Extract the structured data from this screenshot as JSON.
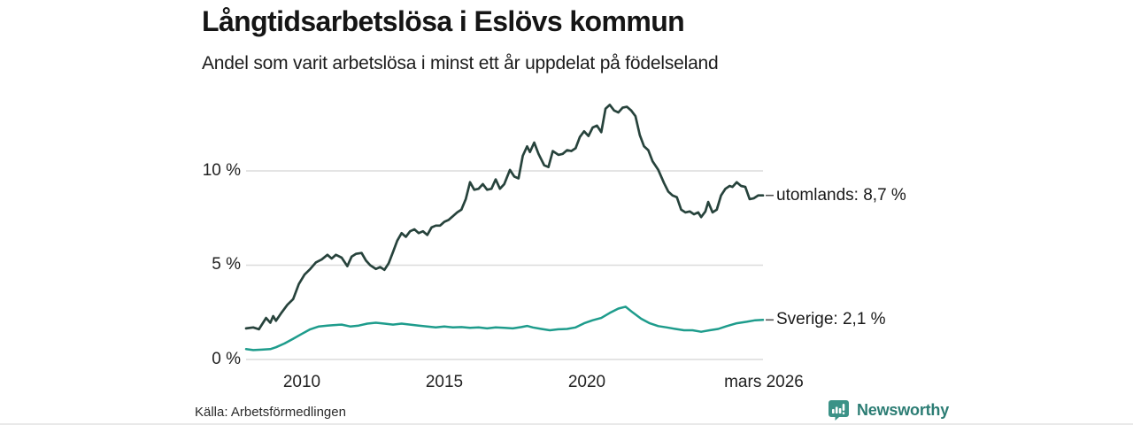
{
  "header": {
    "title": "Långtidsarbetslösa i Eslövs kommun",
    "subtitle": "Andel som varit arbetslösa i minst ett år uppdelat på födelseland"
  },
  "footer": {
    "source": "Källa: Arbetsförmedlingen",
    "brand": "Newsworthy",
    "brand_icon": "newsworthy-bubble-bar-chart-icon"
  },
  "colors": {
    "series_utomlands": "#27433c",
    "series_sverige": "#1e9c8c",
    "grid": "#dcdcdc",
    "leader_dash": "#555555",
    "text": "#1a1a1a",
    "brand_teal": "#2c7d74",
    "brand_bubble": "#3b9287"
  },
  "chart_data": {
    "type": "line",
    "title": "Långtidsarbetslösa i Eslövs kommun",
    "subtitle": "Andel som varit arbetslösa i minst ett år uppdelat på födelseland",
    "grid": true,
    "legend_position": "end-of-line-labels-right",
    "x_axis": {
      "tick_labels": [
        "2010",
        "2015",
        "2020"
      ],
      "tick_values": [
        2010,
        2015,
        2020
      ],
      "end_label": "mars 2026",
      "range": [
        2008.05,
        2026.17
      ],
      "unit": "year"
    },
    "y_axis": {
      "tick_labels": [
        "10 %",
        "5 %",
        "0 %"
      ],
      "tick_values": [
        10,
        5,
        0
      ],
      "range": [
        0,
        14
      ],
      "unit": "percent"
    },
    "series": [
      {
        "name": "utomlands",
        "label": "utomlands: 8,7 %",
        "last_value": 8.7,
        "color": "#27433c",
        "points": [
          [
            2008.05,
            1.65
          ],
          [
            2008.3,
            1.7
          ],
          [
            2008.5,
            1.6
          ],
          [
            2008.75,
            2.2
          ],
          [
            2008.9,
            1.95
          ],
          [
            2009.0,
            2.3
          ],
          [
            2009.1,
            2.05
          ],
          [
            2009.3,
            2.5
          ],
          [
            2009.5,
            2.9
          ],
          [
            2009.7,
            3.2
          ],
          [
            2009.9,
            4.0
          ],
          [
            2010.1,
            4.5
          ],
          [
            2010.3,
            4.8
          ],
          [
            2010.5,
            5.15
          ],
          [
            2010.7,
            5.3
          ],
          [
            2010.9,
            5.55
          ],
          [
            2011.05,
            5.35
          ],
          [
            2011.2,
            5.55
          ],
          [
            2011.4,
            5.4
          ],
          [
            2011.6,
            4.95
          ],
          [
            2011.75,
            5.45
          ],
          [
            2011.9,
            5.6
          ],
          [
            2012.1,
            5.65
          ],
          [
            2012.25,
            5.25
          ],
          [
            2012.4,
            5.0
          ],
          [
            2012.6,
            4.8
          ],
          [
            2012.75,
            4.9
          ],
          [
            2012.9,
            4.75
          ],
          [
            2013.05,
            5.1
          ],
          [
            2013.2,
            5.7
          ],
          [
            2013.35,
            6.3
          ],
          [
            2013.5,
            6.7
          ],
          [
            2013.65,
            6.5
          ],
          [
            2013.8,
            6.8
          ],
          [
            2013.95,
            6.9
          ],
          [
            2014.1,
            6.7
          ],
          [
            2014.25,
            6.8
          ],
          [
            2014.4,
            6.6
          ],
          [
            2014.55,
            7.0
          ],
          [
            2014.7,
            7.1
          ],
          [
            2014.85,
            7.1
          ],
          [
            2015.0,
            7.3
          ],
          [
            2015.15,
            7.4
          ],
          [
            2015.3,
            7.6
          ],
          [
            2015.45,
            7.8
          ],
          [
            2015.6,
            7.95
          ],
          [
            2015.75,
            8.5
          ],
          [
            2015.9,
            9.4
          ],
          [
            2016.05,
            9.0
          ],
          [
            2016.2,
            9.05
          ],
          [
            2016.35,
            9.3
          ],
          [
            2016.5,
            9.0
          ],
          [
            2016.65,
            9.05
          ],
          [
            2016.8,
            9.55
          ],
          [
            2016.95,
            9.05
          ],
          [
            2017.1,
            9.3
          ],
          [
            2017.3,
            10.05
          ],
          [
            2017.45,
            9.7
          ],
          [
            2017.6,
            9.6
          ],
          [
            2017.75,
            10.8
          ],
          [
            2017.9,
            11.3
          ],
          [
            2018.0,
            11.0
          ],
          [
            2018.15,
            11.5
          ],
          [
            2018.3,
            10.9
          ],
          [
            2018.5,
            10.3
          ],
          [
            2018.65,
            10.2
          ],
          [
            2018.8,
            11.05
          ],
          [
            2019.0,
            10.85
          ],
          [
            2019.15,
            10.9
          ],
          [
            2019.3,
            11.1
          ],
          [
            2019.45,
            11.05
          ],
          [
            2019.6,
            11.2
          ],
          [
            2019.75,
            11.8
          ],
          [
            2019.9,
            12.1
          ],
          [
            2020.05,
            11.85
          ],
          [
            2020.2,
            12.3
          ],
          [
            2020.35,
            12.4
          ],
          [
            2020.5,
            12.05
          ],
          [
            2020.65,
            13.3
          ],
          [
            2020.8,
            13.5
          ],
          [
            2020.95,
            13.2
          ],
          [
            2021.1,
            13.1
          ],
          [
            2021.25,
            13.35
          ],
          [
            2021.4,
            13.4
          ],
          [
            2021.55,
            13.2
          ],
          [
            2021.7,
            12.9
          ],
          [
            2021.85,
            11.9
          ],
          [
            2022.0,
            11.3
          ],
          [
            2022.15,
            11.1
          ],
          [
            2022.3,
            10.5
          ],
          [
            2022.5,
            10.05
          ],
          [
            2022.7,
            9.35
          ],
          [
            2022.85,
            8.9
          ],
          [
            2023.0,
            8.7
          ],
          [
            2023.15,
            8.6
          ],
          [
            2023.3,
            7.95
          ],
          [
            2023.45,
            7.8
          ],
          [
            2023.6,
            7.85
          ],
          [
            2023.75,
            7.7
          ],
          [
            2023.9,
            7.8
          ],
          [
            2024.0,
            7.55
          ],
          [
            2024.15,
            7.85
          ],
          [
            2024.25,
            8.35
          ],
          [
            2024.4,
            7.8
          ],
          [
            2024.55,
            7.95
          ],
          [
            2024.7,
            8.7
          ],
          [
            2024.85,
            9.05
          ],
          [
            2025.0,
            9.2
          ],
          [
            2025.1,
            9.15
          ],
          [
            2025.25,
            9.4
          ],
          [
            2025.4,
            9.2
          ],
          [
            2025.55,
            9.15
          ],
          [
            2025.7,
            8.5
          ],
          [
            2025.85,
            8.55
          ],
          [
            2026.0,
            8.7
          ],
          [
            2026.17,
            8.7
          ]
        ]
      },
      {
        "name": "Sverige",
        "label": "Sverige: 2,1 %",
        "last_value": 2.1,
        "color": "#1e9c8c",
        "points": [
          [
            2008.05,
            0.55
          ],
          [
            2008.3,
            0.5
          ],
          [
            2008.6,
            0.52
          ],
          [
            2008.9,
            0.55
          ],
          [
            2009.1,
            0.65
          ],
          [
            2009.4,
            0.85
          ],
          [
            2009.7,
            1.1
          ],
          [
            2010.0,
            1.35
          ],
          [
            2010.3,
            1.6
          ],
          [
            2010.6,
            1.75
          ],
          [
            2010.9,
            1.8
          ],
          [
            2011.1,
            1.82
          ],
          [
            2011.4,
            1.85
          ],
          [
            2011.7,
            1.75
          ],
          [
            2012.0,
            1.8
          ],
          [
            2012.3,
            1.9
          ],
          [
            2012.6,
            1.95
          ],
          [
            2012.9,
            1.9
          ],
          [
            2013.2,
            1.85
          ],
          [
            2013.5,
            1.9
          ],
          [
            2013.8,
            1.85
          ],
          [
            2014.1,
            1.8
          ],
          [
            2014.4,
            1.75
          ],
          [
            2014.7,
            1.7
          ],
          [
            2015.0,
            1.75
          ],
          [
            2015.3,
            1.7
          ],
          [
            2015.6,
            1.72
          ],
          [
            2015.9,
            1.68
          ],
          [
            2016.2,
            1.7
          ],
          [
            2016.5,
            1.65
          ],
          [
            2016.8,
            1.7
          ],
          [
            2017.1,
            1.68
          ],
          [
            2017.4,
            1.65
          ],
          [
            2017.7,
            1.72
          ],
          [
            2017.9,
            1.78
          ],
          [
            2018.1,
            1.7
          ],
          [
            2018.4,
            1.62
          ],
          [
            2018.7,
            1.55
          ],
          [
            2019.0,
            1.6
          ],
          [
            2019.3,
            1.62
          ],
          [
            2019.6,
            1.7
          ],
          [
            2019.9,
            1.92
          ],
          [
            2020.2,
            2.08
          ],
          [
            2020.5,
            2.2
          ],
          [
            2020.8,
            2.47
          ],
          [
            2021.1,
            2.7
          ],
          [
            2021.35,
            2.8
          ],
          [
            2021.6,
            2.5
          ],
          [
            2021.9,
            2.16
          ],
          [
            2022.2,
            1.92
          ],
          [
            2022.5,
            1.77
          ],
          [
            2022.8,
            1.7
          ],
          [
            2023.1,
            1.62
          ],
          [
            2023.4,
            1.55
          ],
          [
            2023.7,
            1.55
          ],
          [
            2024.0,
            1.47
          ],
          [
            2024.3,
            1.55
          ],
          [
            2024.6,
            1.62
          ],
          [
            2024.9,
            1.77
          ],
          [
            2025.25,
            1.92
          ],
          [
            2025.6,
            2.0
          ],
          [
            2025.9,
            2.08
          ],
          [
            2026.17,
            2.1
          ]
        ]
      }
    ]
  }
}
